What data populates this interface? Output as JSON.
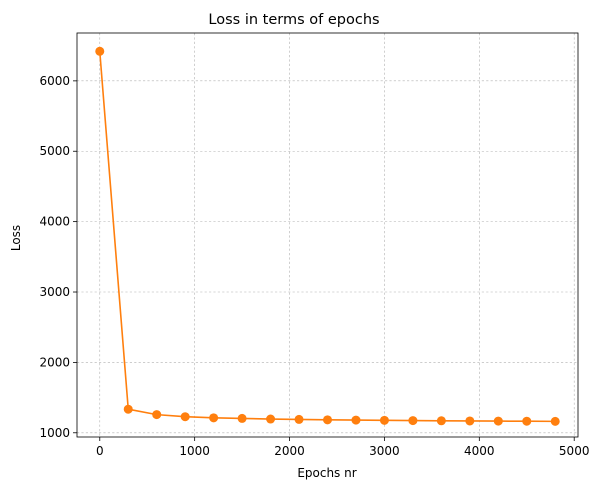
{
  "chart_data": {
    "type": "line",
    "title": "Loss in terms of epochs",
    "xlabel": "Epochs nr",
    "ylabel": "Loss",
    "xlim": [
      -240,
      5040
    ],
    "ylim": [
      940,
      6680
    ],
    "xticks": [
      0,
      1000,
      2000,
      3000,
      4000,
      5000
    ],
    "yticks": [
      1000,
      2000,
      3000,
      4000,
      5000,
      6000
    ],
    "grid": true,
    "grid_style": "dashed",
    "series": [
      {
        "name": "loss",
        "color": "#ff7f0e",
        "marker": "circle",
        "x": [
          0,
          300,
          600,
          900,
          1200,
          1500,
          1800,
          2100,
          2400,
          2700,
          3000,
          3300,
          3600,
          3900,
          4200,
          4500,
          4800
        ],
        "y": [
          6420,
          1335,
          1258,
          1228,
          1212,
          1204,
          1195,
          1190,
          1184,
          1180,
          1177,
          1173,
          1170,
          1168,
          1166,
          1164,
          1162
        ]
      }
    ]
  },
  "colors": {
    "line": "#ff7f0e",
    "grid": "#b0b0b0",
    "axes": "#000000"
  }
}
